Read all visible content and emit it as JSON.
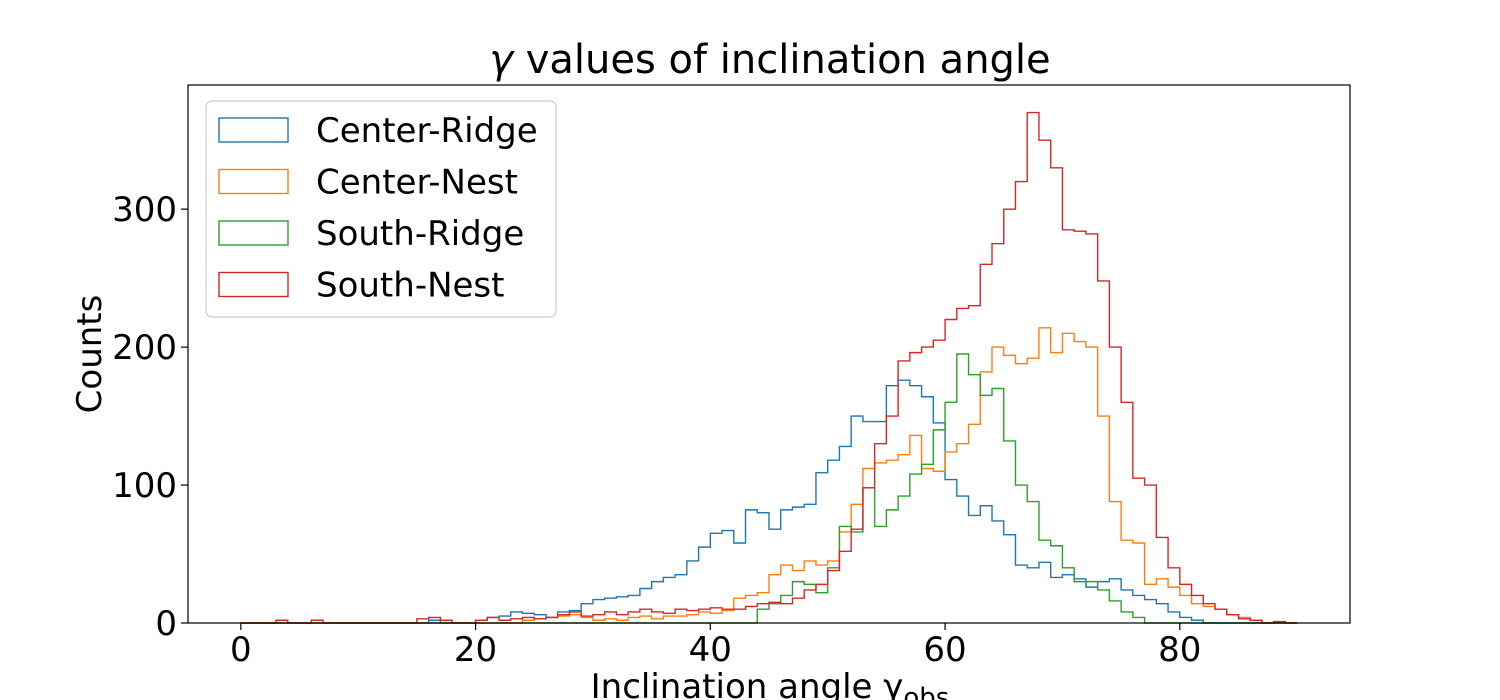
{
  "chart_data": {
    "type": "histogram",
    "title_symbol": "γ",
    "title": " values of inclination angle",
    "xlabel": "Inclination angle γ",
    "xlabel_subscript": "obs",
    "ylabel": "Counts",
    "xlim": [
      -4.5,
      94.5
    ],
    "ylim": [
      0,
      390
    ],
    "xticks": [
      0,
      20,
      40,
      60,
      80
    ],
    "yticks": [
      0,
      100,
      200,
      300
    ],
    "grid": false,
    "legend_location": "upper left",
    "bin_edges": [
      0,
      1,
      2,
      3,
      4,
      5,
      6,
      7,
      8,
      9,
      10,
      11,
      12,
      13,
      14,
      15,
      16,
      17,
      18,
      19,
      20,
      21,
      22,
      23,
      24,
      25,
      26,
      27,
      28,
      29,
      30,
      31,
      32,
      33,
      34,
      35,
      36,
      37,
      38,
      39,
      40,
      41,
      42,
      43,
      44,
      45,
      46,
      47,
      48,
      49,
      50,
      51,
      52,
      53,
      54,
      55,
      56,
      57,
      58,
      59,
      60,
      61,
      62,
      63,
      64,
      65,
      66,
      67,
      68,
      69,
      70,
      71,
      72,
      73,
      74,
      75,
      76,
      77,
      78,
      79,
      80,
      81,
      82,
      83,
      84,
      85,
      86,
      87,
      88,
      89,
      90
    ],
    "series": [
      {
        "name": "Center-Ridge",
        "color": "#1f77b4",
        "counts": [
          0,
          0,
          0,
          0,
          0,
          0,
          0,
          0,
          0,
          0,
          0,
          0,
          0,
          0,
          0,
          0,
          2,
          0,
          0,
          0,
          2,
          4,
          5,
          8,
          7,
          6,
          4,
          8,
          9,
          14,
          17,
          18,
          19,
          20,
          25,
          30,
          33,
          35,
          45,
          55,
          65,
          67,
          58,
          82,
          80,
          68,
          82,
          84,
          86,
          109,
          118,
          128,
          150,
          146,
          146,
          172,
          176,
          172,
          164,
          145,
          104,
          92,
          78,
          85,
          74,
          64,
          42,
          40,
          44,
          33,
          35,
          32,
          26,
          30,
          32,
          24,
          20,
          17,
          14,
          8,
          4,
          2,
          0,
          0,
          0,
          0,
          0,
          0,
          0,
          0
        ]
      },
      {
        "name": "Center-Nest",
        "color": "#ff7f0e",
        "counts": [
          0,
          0,
          0,
          0,
          0,
          0,
          0,
          0,
          0,
          0,
          0,
          0,
          0,
          0,
          0,
          0,
          0,
          0,
          0,
          0,
          0,
          0,
          0,
          0,
          2,
          3,
          4,
          5,
          6,
          4,
          2,
          3,
          2,
          4,
          5,
          3,
          5,
          5,
          6,
          8,
          7,
          9,
          18,
          20,
          22,
          35,
          42,
          38,
          45,
          42,
          45,
          66,
          86,
          112,
          116,
          118,
          122,
          136,
          112,
          110,
          124,
          130,
          144,
          182,
          200,
          194,
          188,
          192,
          214,
          196,
          210,
          204,
          200,
          150,
          88,
          60,
          58,
          28,
          32,
          26,
          20,
          14,
          12,
          10,
          6,
          4,
          2,
          0,
          0,
          0
        ]
      },
      {
        "name": "South-Ridge",
        "color": "#2ca02c",
        "counts": [
          0,
          0,
          0,
          0,
          0,
          0,
          0,
          0,
          0,
          0,
          0,
          0,
          0,
          0,
          0,
          0,
          0,
          0,
          0,
          0,
          0,
          0,
          0,
          0,
          0,
          0,
          0,
          0,
          0,
          0,
          0,
          0,
          0,
          0,
          0,
          0,
          0,
          0,
          0,
          0,
          0,
          0,
          0,
          0,
          10,
          14,
          20,
          30,
          28,
          22,
          40,
          70,
          66,
          98,
          70,
          82,
          92,
          108,
          115,
          140,
          160,
          195,
          180,
          165,
          170,
          132,
          100,
          88,
          60,
          56,
          40,
          30,
          30,
          24,
          16,
          8,
          4,
          0,
          0,
          0,
          0,
          0,
          0,
          0,
          0,
          0,
          0,
          0,
          0,
          0
        ]
      },
      {
        "name": "South-Nest",
        "color": "#d62728",
        "counts": [
          0,
          0,
          0,
          2,
          0,
          0,
          2,
          0,
          0,
          0,
          0,
          0,
          0,
          0,
          0,
          3,
          4,
          2,
          0,
          0,
          2,
          4,
          2,
          3,
          4,
          3,
          4,
          6,
          8,
          5,
          6,
          8,
          6,
          8,
          10,
          8,
          7,
          10,
          9,
          10,
          11,
          10,
          10,
          12,
          14,
          15,
          14,
          18,
          24,
          28,
          38,
          52,
          68,
          98,
          130,
          150,
          190,
          196,
          200,
          205,
          220,
          228,
          230,
          260,
          275,
          300,
          320,
          370,
          350,
          330,
          285,
          284,
          282,
          248,
          200,
          160,
          105,
          100,
          62,
          40,
          28,
          20,
          14,
          10,
          6,
          3,
          2,
          0,
          1,
          0
        ]
      }
    ]
  }
}
